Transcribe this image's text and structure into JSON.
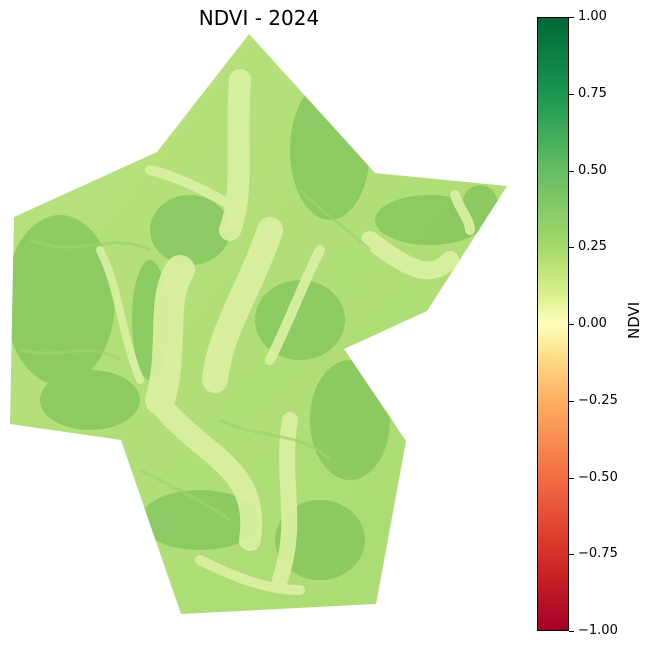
{
  "title": "NDVI - 2024",
  "colorbar": {
    "label": "NDVI",
    "ticks": [
      "1.00",
      "0.75",
      "0.50",
      "0.25",
      "0.00",
      "−0.25",
      "−0.50",
      "−0.75",
      "−1.00"
    ],
    "range": [
      -1.0,
      1.0
    ],
    "colormap": "RdYlGn",
    "colors": [
      "#a50026",
      "#d73027",
      "#f46d43",
      "#fdae61",
      "#fee08b",
      "#ffffbf",
      "#d9ef8b",
      "#a6d96a",
      "#66bd63",
      "#1a9850",
      "#006837"
    ]
  },
  "map": {
    "dominant_colors": [
      "#b5e07a",
      "#8ecb64",
      "#d8f09c",
      "#7ec15b"
    ]
  }
}
